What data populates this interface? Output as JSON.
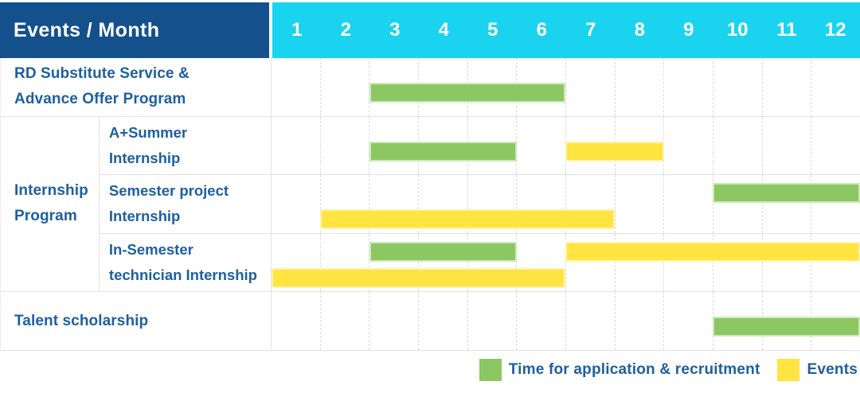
{
  "colors": {
    "header_bg": "#14508c",
    "months_bg": "#1ad3ee",
    "green": "#8cc764",
    "green_border": "#cfe9b8",
    "yellow": "#ffe442",
    "yellow_border": "#fff3ae",
    "text_blue": "#1e5fa0"
  },
  "header": {
    "corner_label": "Events / Month",
    "months": [
      "1",
      "2",
      "3",
      "4",
      "5",
      "6",
      "7",
      "8",
      "9",
      "10",
      "11",
      "12"
    ]
  },
  "groups": [
    {
      "id": "internship",
      "label_lines": [
        "Internship",
        "Program"
      ]
    }
  ],
  "rows": [
    {
      "group": null,
      "label_lines": [
        "RD Substitute Service &",
        "Advance Offer Program"
      ],
      "bars": [
        {
          "type": "application",
          "start": 3,
          "end": 6,
          "track": "center"
        }
      ]
    },
    {
      "group": "internship",
      "label_lines": [
        "A+Summer",
        "Internship"
      ],
      "bars": [
        {
          "type": "application",
          "start": 3,
          "end": 5,
          "track": "center"
        },
        {
          "type": "events",
          "start": 7,
          "end": 8,
          "track": "center"
        }
      ]
    },
    {
      "group": "internship",
      "label_lines": [
        "Semester project",
        "Internship"
      ],
      "bars": [
        {
          "type": "application",
          "start": 10,
          "end": 12,
          "track": "top"
        },
        {
          "type": "events",
          "start": 2,
          "end": 7,
          "track": "bottom"
        }
      ]
    },
    {
      "group": "internship",
      "label_lines": [
        "In-Semester",
        "technician Internship"
      ],
      "bars": [
        {
          "type": "application",
          "start": 3,
          "end": 5,
          "track": "top"
        },
        {
          "type": "events",
          "start": 7,
          "end": 12,
          "track": "top"
        },
        {
          "type": "events",
          "start": 1,
          "end": 6,
          "track": "bottom"
        }
      ]
    },
    {
      "group": null,
      "label_lines": [
        "Talent scholarship"
      ],
      "bars": [
        {
          "type": "application",
          "start": 10,
          "end": 12,
          "track": "center"
        }
      ]
    }
  ],
  "legend": [
    {
      "type": "application",
      "label": "Time for application & recruitment"
    },
    {
      "type": "events",
      "label": "Events"
    }
  ],
  "chart_data": {
    "type": "gantt",
    "title": "Events / Month",
    "x_axis": {
      "label": "Month",
      "ticks": [
        1,
        2,
        3,
        4,
        5,
        6,
        7,
        8,
        9,
        10,
        11,
        12
      ],
      "range": [
        1,
        12
      ]
    },
    "legend_entries": [
      {
        "label": "Time for application & recruitment",
        "color": "#8cc764"
      },
      {
        "label": "Events",
        "color": "#ffe442"
      }
    ],
    "legend_position": "bottom-right",
    "grid": "vertical-dashed",
    "rows": [
      {
        "event": "RD Substitute Service & Advance Offer Program",
        "group": null,
        "application_recruitment_months": [
          [
            3,
            6
          ]
        ],
        "events_months": []
      },
      {
        "event": "A+Summer Internship",
        "group": "Internship Program",
        "application_recruitment_months": [
          [
            3,
            5
          ]
        ],
        "events_months": [
          [
            7,
            8
          ]
        ]
      },
      {
        "event": "Semester project Internship",
        "group": "Internship Program",
        "application_recruitment_months": [
          [
            10,
            12
          ]
        ],
        "events_months": [
          [
            2,
            7
          ]
        ]
      },
      {
        "event": "In-Semester technician Internship",
        "group": "Internship Program",
        "application_recruitment_months": [
          [
            3,
            5
          ]
        ],
        "events_months": [
          [
            1,
            6
          ],
          [
            7,
            12
          ]
        ]
      },
      {
        "event": "Talent scholarship",
        "group": null,
        "application_recruitment_months": [
          [
            10,
            12
          ]
        ],
        "events_months": []
      }
    ]
  }
}
